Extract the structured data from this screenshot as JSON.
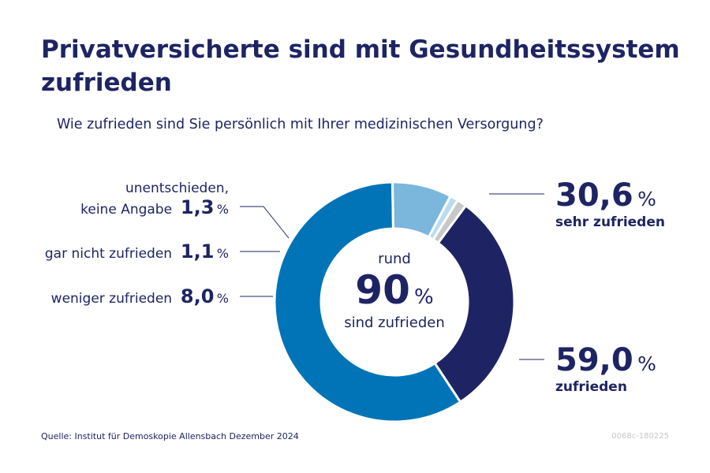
{
  "header": {
    "title": "Privatversicherte sind mit Gesundheitssystem zufrieden",
    "subtitle": "Wie zufrieden sind Sie persönlich mit Ihrer medizinischen Versorgung?"
  },
  "center": {
    "top": "rund",
    "value": "90",
    "unit": "%",
    "bottom": "sind zufrieden"
  },
  "footer": {
    "source": "Quelle: Institut für Demoskopie Allensbach Dezember 2024",
    "code": "0068c-180225"
  },
  "chart_data": {
    "type": "pie",
    "title": "Privatversicherte sind mit Gesundheitssystem zufrieden",
    "subtitle": "Wie zufrieden sind Sie persönlich mit Ihrer medizinischen Versorgung?",
    "unit": "%",
    "donut": true,
    "slices": [
      {
        "label": "sehr zufrieden",
        "value": 30.6,
        "display": "30,6",
        "color": "#1e2463"
      },
      {
        "label": "zufrieden",
        "value": 59.0,
        "display": "59,0",
        "color": "#0074b7"
      },
      {
        "label": "weniger zufrieden",
        "value": 8.0,
        "display": "8,0",
        "color": "#7bb6dc"
      },
      {
        "label": "gar nicht zufrieden",
        "value": 1.1,
        "display": "1,1",
        "color": "#b9dcf2"
      },
      {
        "label_lines": [
          "unentschieden,",
          "keine Angabe"
        ],
        "label": "unentschieden, keine Angabe",
        "value": 1.3,
        "display": "1,3",
        "color": "#c8c8c8"
      }
    ]
  }
}
